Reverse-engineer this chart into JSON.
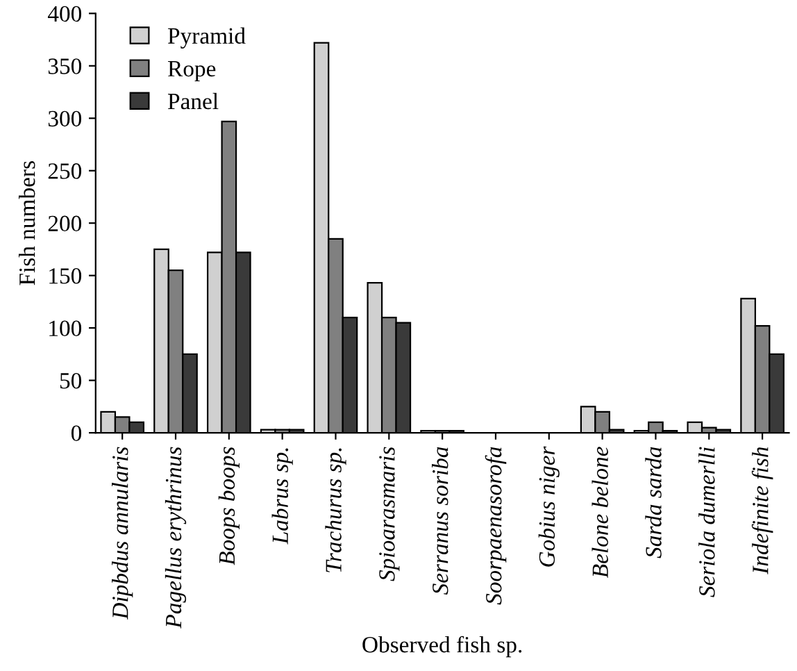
{
  "chart_data": {
    "type": "bar",
    "xlabel": "Observed fish sp.",
    "ylabel": "Fish numbers",
    "categories": [
      "Dipbdus annularis",
      "Pagellus erythrinus",
      "Boops boops",
      "Labrus sp.",
      "Trachurus sp.",
      "Spioarasmaris",
      "Serranus soriba",
      "Soorpaenasorofa",
      "Gobius niger",
      "Belone belone",
      "Sarda sarda",
      "Seriola dumerlli",
      "Indefinite fish"
    ],
    "series": [
      {
        "name": "Pyramid",
        "color": "#d0d0d0",
        "values": [
          20,
          175,
          172,
          3,
          372,
          143,
          2,
          null,
          null,
          25,
          2,
          10,
          128
        ]
      },
      {
        "name": "Rope",
        "color": "#808080",
        "values": [
          15,
          155,
          297,
          3,
          185,
          110,
          2,
          null,
          null,
          20,
          10,
          5,
          102
        ]
      },
      {
        "name": "Panel",
        "color": "#3a3a3a",
        "values": [
          10,
          75,
          172,
          3,
          110,
          105,
          2,
          null,
          null,
          3,
          2,
          3,
          75
        ]
      }
    ],
    "ylim": [
      0,
      400
    ],
    "yticks": [
      0,
      50,
      100,
      150,
      200,
      250,
      300,
      350,
      400
    ],
    "grid": false,
    "legend": "top left"
  }
}
